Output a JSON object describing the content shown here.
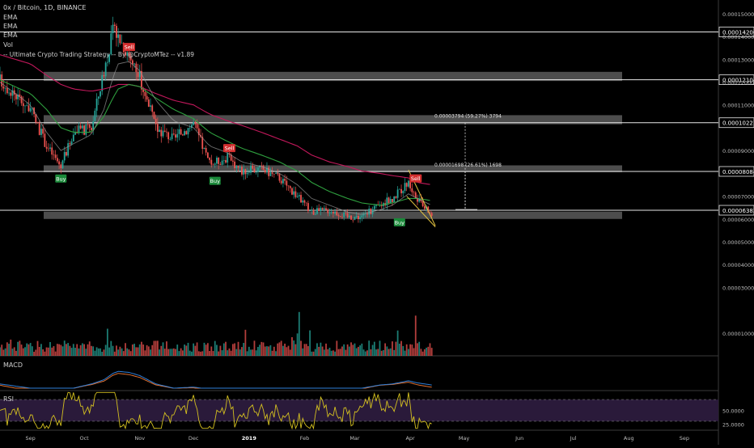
{
  "header": {
    "title": "0x / Bitcoin, 1D, BINANCE",
    "indicators": [
      "EMA",
      "EMA",
      "EMA",
      "Vol",
      "-- Ultimate Crypto Trading Strategy -- By @CryptoMTez -- v1.89"
    ]
  },
  "colors": {
    "background": "#000000",
    "up_candle": "#26a69a",
    "down_candle": "#ef5350",
    "ema_fast": "#9a9a9a",
    "ema_mid": "#2e9e3e",
    "ema_slow": "#c2185b",
    "zone": "#5a5a5a",
    "sell_label": "#d32f2f",
    "buy_label": "#1b8a3a",
    "wedge": "#e0c040",
    "macd_line": "#2f7fd8",
    "signal_line": "#e07030",
    "rsi_line": "#d4c020",
    "rsi_band": "#2a1a3a"
  },
  "chart_data": {
    "type": "candlestick",
    "price_axis_ticks": [
      "0.00015000",
      "0.00014000",
      "0.00013000",
      "0.00012000",
      "0.00011000",
      "0.00009000",
      "0.00007000",
      "0.00006000",
      "0.00005000",
      "0.00004000",
      "0.00003000",
      "0.00001000"
    ],
    "price_axis_ticks_values": [
      0.00015,
      0.00014,
      0.00013,
      0.00012,
      0.00011,
      9e-05,
      7e-05,
      6e-05,
      5e-05,
      4e-05,
      3e-05,
      1e-05
    ],
    "horizontal_levels": [
      {
        "label": "0.00014200",
        "value": 0.000142
      },
      {
        "label": "0.00012104",
        "value": 0.00012104
      },
      {
        "label": "0.00010221",
        "value": 0.00010221
      },
      {
        "label": "0.00008084",
        "value": 8.084e-05
      },
      {
        "label": "0.00006382",
        "value": 6.382e-05
      }
    ],
    "zones": [
      {
        "from": 0.0001205,
        "to": 0.0001245
      },
      {
        "from": 0.0001015,
        "to": 0.0001055
      },
      {
        "from": 8.05e-05,
        "to": 8.35e-05
      },
      {
        "from": 6e-05,
        "to": 6.32e-05
      }
    ],
    "measurements": [
      {
        "label": "0.00003794 (59.27%) 3794",
        "from": 6.382e-05,
        "to": 0.00010221
      },
      {
        "label": "0.00001698 (26.61%) 1698",
        "from": 6.382e-05,
        "to": 8.084e-05
      }
    ],
    "signals": [
      {
        "type": "Sell",
        "date": "2018-10-26",
        "price": 0.0001336
      },
      {
        "type": "Buy",
        "date": "2018-09-18",
        "price": 7.95e-05
      },
      {
        "type": "Buy",
        "date": "2018-12-13",
        "price": 7.85e-05
      },
      {
        "type": "Sell",
        "date": "2018-12-21",
        "price": 8.93e-05
      },
      {
        "type": "Buy",
        "date": "2019-03-26",
        "price": 6.03e-05
      },
      {
        "type": "Sell",
        "date": "2019-04-04",
        "price": 7.6e-05
      }
    ],
    "x_axis_labels": [
      {
        "label": "Sep",
        "date": "2018-09-01"
      },
      {
        "label": "Oct",
        "date": "2018-10-01"
      },
      {
        "label": "Nov",
        "date": "2018-11-01"
      },
      {
        "label": "Dec",
        "date": "2018-12-01"
      },
      {
        "label": "2019",
        "date": "2019-01-01"
      },
      {
        "label": "Feb",
        "date": "2019-02-01"
      },
      {
        "label": "Mar",
        "date": "2019-03-01"
      },
      {
        "label": "Apr",
        "date": "2019-04-01"
      },
      {
        "label": "May",
        "date": "2019-05-01"
      },
      {
        "label": "Jun",
        "date": "2019-06-01"
      },
      {
        "label": "Jul",
        "date": "2019-07-01"
      },
      {
        "label": "Aug",
        "date": "2019-08-01"
      },
      {
        "label": "Sep",
        "date": "2019-09-01"
      }
    ],
    "x_range": [
      "2018-08-15",
      "2019-09-20"
    ],
    "price_range": [
      0.0,
      0.000156
    ],
    "price_series": {
      "dates": [
        "2018-08-15",
        "2018-09-01",
        "2018-09-10",
        "2018-09-18",
        "2018-09-25",
        "2018-10-05",
        "2018-10-12",
        "2018-10-17",
        "2018-10-20",
        "2018-10-26",
        "2018-11-01",
        "2018-11-10",
        "2018-11-20",
        "2018-12-01",
        "2018-12-10",
        "2018-12-20",
        "2018-12-28",
        "2019-01-08",
        "2019-01-18",
        "2019-01-28",
        "2019-02-05",
        "2019-02-15",
        "2019-02-25",
        "2019-03-05",
        "2019-03-15",
        "2019-03-22",
        "2019-03-31",
        "2019-04-05",
        "2019-04-13"
      ],
      "closes": [
        0.000121,
        0.000108,
        9.2e-05,
        8.3e-05,
        9.8e-05,
        0.0001,
        0.000125,
        0.000142,
        0.00014,
        0.000132,
        0.000122,
        0.0001,
        9.5e-05,
        0.000102,
        8.4e-05,
        8.7e-05,
        8.1e-05,
        8.2e-05,
        7.8e-05,
        7e-05,
        6.3e-05,
        6.4e-05,
        6.1e-05,
        6.1e-05,
        6.6e-05,
        6.9e-05,
        7.6e-05,
        6.8e-05,
        6.2e-05
      ]
    },
    "ema_fast": [
      0.00012,
      0.00011,
      9.8e-05,
      9e-05,
      9.3e-05,
      9.7e-05,
      0.000108,
      0.000122,
      0.000128,
      0.000129,
      0.000125,
      0.000112,
      0.000103,
      0.0001,
      9.2e-05,
      8.9e-05,
      8.5e-05,
      8.3e-05,
      8e-05,
      7.5e-05,
      6.9e-05,
      6.6e-05,
      6.3e-05,
      6.2e-05,
      6.4e-05,
      6.6e-05,
      7.1e-05,
      6.9e-05,
      6.6e-05
    ],
    "ema_mid": [
      0.000121,
      0.000115,
      0.000108,
      0.0001,
      9.8e-05,
      9.8e-05,
      0.000105,
      0.000113,
      0.000117,
      0.000119,
      0.000118,
      0.000113,
      0.000108,
      0.000104,
      9.8e-05,
      9.4e-05,
      9.1e-05,
      8.8e-05,
      8.5e-05,
      8.1e-05,
      7.6e-05,
      7.2e-05,
      6.9e-05,
      6.7e-05,
      6.6e-05,
      6.7e-05,
      6.9e-05,
      6.9e-05,
      6.8e-05
    ],
    "ema_slow": [
      0.000132,
      0.000128,
      0.000123,
      0.000119,
      0.000117,
      0.000116,
      0.000117,
      0.000118,
      0.000119,
      0.000119,
      0.000118,
      0.000115,
      0.000112,
      0.00011,
      0.000106,
      0.000103,
      0.000101,
      9.8e-05,
      9.5e-05,
      9.2e-05,
      8.8e-05,
      8.5e-05,
      8.3e-05,
      8.1e-05,
      8e-05,
      7.9e-05,
      7.8e-05,
      7.6e-05,
      7.5e-05
    ],
    "wedge": {
      "upper": [
        {
          "date": "2019-03-31",
          "price": 8.15e-05
        },
        {
          "date": "2019-04-15",
          "price": 5.7e-05
        }
      ],
      "lower": [
        {
          "date": "2019-03-30",
          "price": 7e-05
        },
        {
          "date": "2019-04-15",
          "price": 5.65e-05
        }
      ]
    },
    "macd": {
      "label": "MACD"
    },
    "rsi": {
      "label": "RSI",
      "ticks": [
        "50.0000",
        "25.0000"
      ],
      "ticks_values": [
        50,
        25
      ],
      "range": [
        15,
        85
      ],
      "band": [
        30,
        70
      ]
    }
  }
}
